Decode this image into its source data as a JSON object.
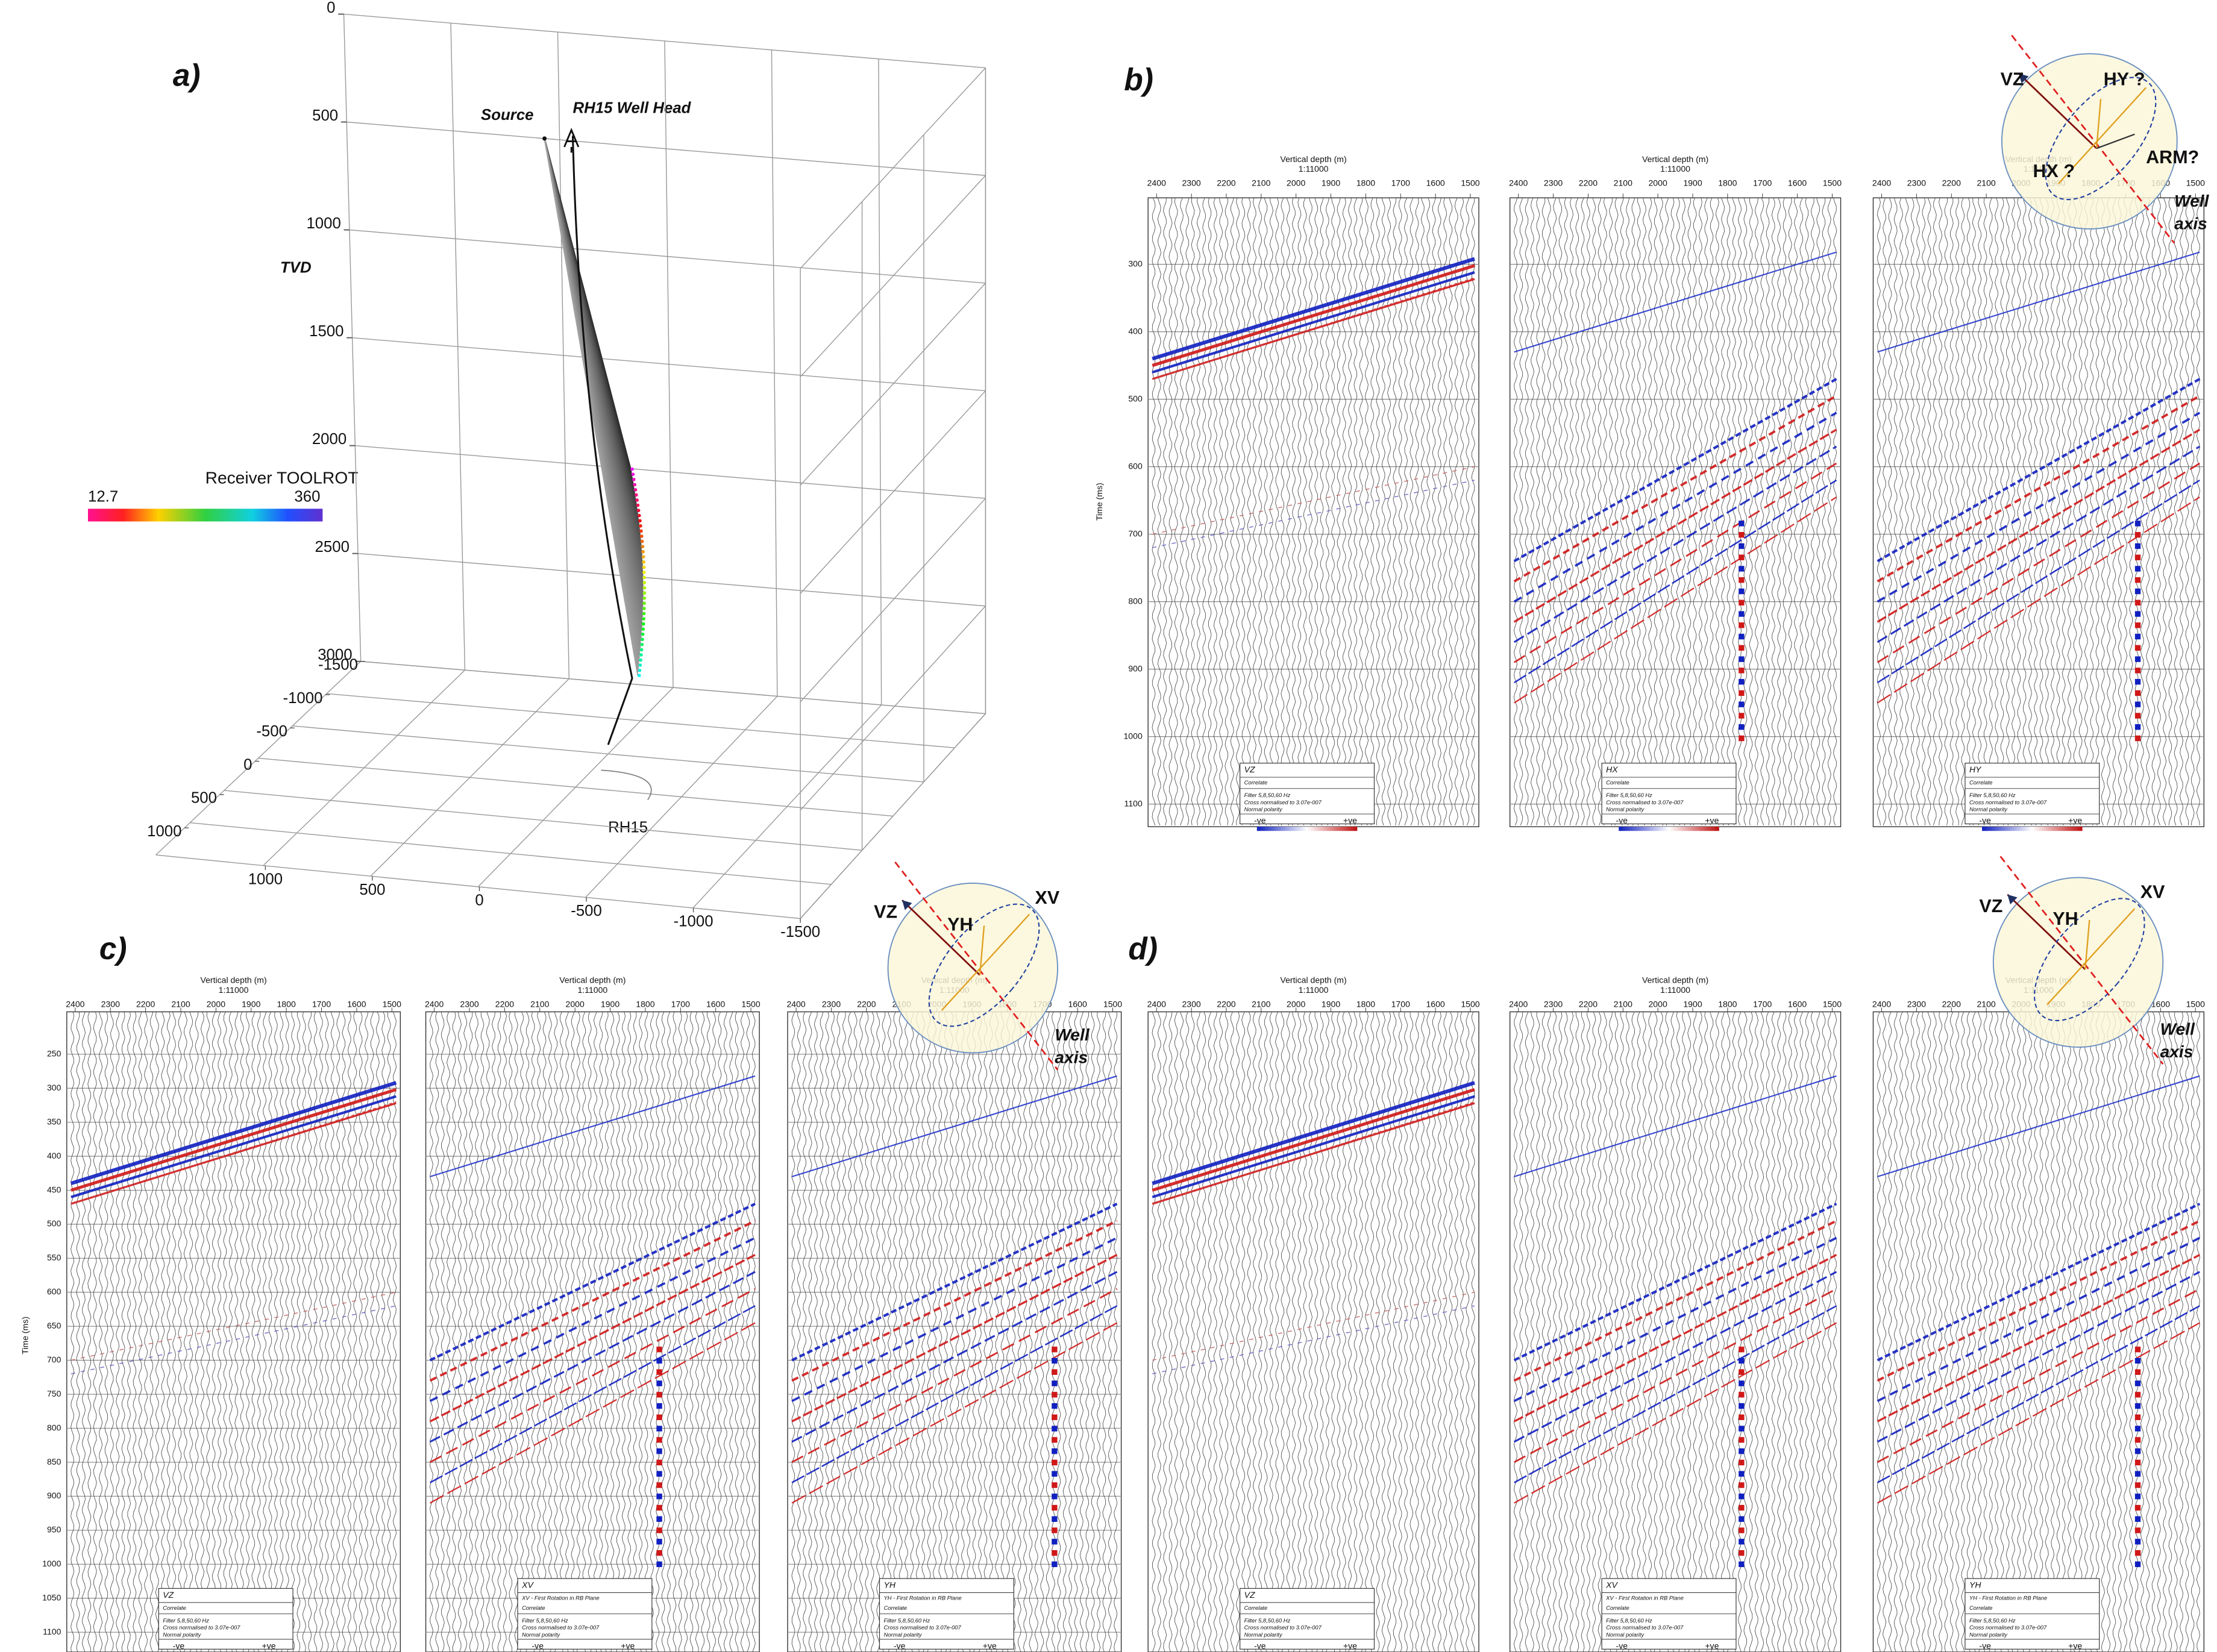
{
  "panel_a": {
    "label": "a)",
    "source": "Source",
    "well_head": "RH15 Well Head",
    "tvd_label": "TVD",
    "well_name": "RH15",
    "tvd_ticks": [
      0,
      500,
      1000,
      1500,
      2000,
      2500,
      3000
    ],
    "x_ticks": [
      -1500,
      -1000,
      -500,
      0,
      500,
      1000
    ],
    "y_ticks": [
      1000,
      500,
      0,
      -500,
      -1000,
      -1500
    ],
    "colorbar": {
      "title": "Receiver TOOLROT",
      "min": 12.7,
      "max": 360
    }
  },
  "gather_header": {
    "title": "Vertical depth (m)",
    "scale": "1:11000",
    "depth_ticks": [
      2400,
      2300,
      2200,
      2100,
      2000,
      1900,
      1800,
      1700,
      1600,
      1500
    ]
  },
  "legend_common": {
    "filter": "Filter      5,8,50,60 Hz",
    "normalisation": "Cross normalised to 3.07e-007",
    "polarity": "Normal polarity",
    "negative": "-ve",
    "positive": "+ve"
  },
  "rows": [
    {
      "label": "b)",
      "time_label": "Time (ms)",
      "time_ticks": [
        300,
        400,
        500,
        600,
        700,
        800,
        900,
        1000,
        1100
      ],
      "gathers": [
        {
          "component": "VZ",
          "lines": [
            "Correlate"
          ]
        },
        {
          "component": "HX",
          "lines": [
            "Correlate"
          ]
        },
        {
          "component": "HY",
          "lines": [
            "Correlate"
          ]
        }
      ],
      "diagram": {
        "vertical": "VZ",
        "axis1": "HY ?",
        "axis2": "HX ?",
        "extra": "ARM?",
        "well": [
          "Well",
          "axis"
        ]
      }
    },
    {
      "label": "c)",
      "time_label": "Time (ms)",
      "time_ticks": [
        250,
        300,
        350,
        400,
        450,
        500,
        550,
        600,
        650,
        700,
        750,
        800,
        850,
        900,
        950,
        1000,
        1050,
        1100
      ],
      "gathers": [
        {
          "component": "VZ",
          "lines": [
            "Correlate"
          ]
        },
        {
          "component": "XV",
          "lines": [
            "XV - First Rotation in RB Plane",
            "Correlate"
          ]
        },
        {
          "component": "YH",
          "lines": [
            "YH - First Rotation in RB Plane",
            "Correlate"
          ]
        }
      ],
      "diagram": {
        "vertical": "VZ",
        "axis1": "YH",
        "axis2": "XV",
        "well": [
          "Well",
          "axis"
        ]
      }
    },
    {
      "label": "d)",
      "gathers": [
        {
          "component": "VZ",
          "lines": [
            "Correlate"
          ]
        },
        {
          "component": "XV",
          "lines": [
            "XV - First Rotation in RB Plane",
            "Correlate"
          ]
        },
        {
          "component": "YH",
          "lines": [
            "YH - First Rotation in RB Plane",
            "Correlate"
          ]
        }
      ],
      "diagram": {
        "vertical": "VZ",
        "axis1": "YH",
        "axis2": "XV",
        "well": [
          "Well",
          "axis"
        ]
      }
    }
  ]
}
